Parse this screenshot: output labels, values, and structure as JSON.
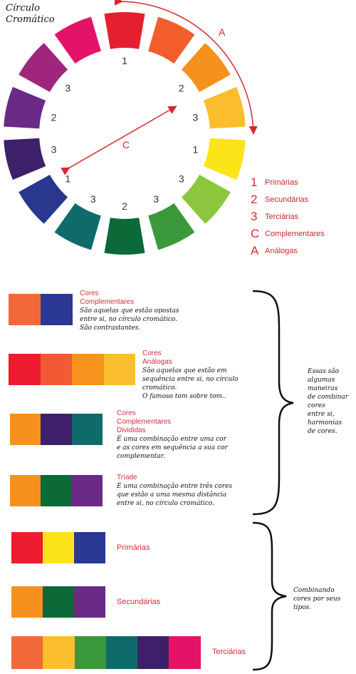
{
  "title": {
    "line1": "Círculo",
    "line2": "Cromático"
  },
  "wheel": {
    "segments": [
      {
        "color": "#e51f2e",
        "label": "1"
      },
      {
        "color": "#f25d2b",
        "label": ""
      },
      {
        "color": "#f6911e",
        "label": "2"
      },
      {
        "color": "#fbbd2c",
        "label": "3"
      },
      {
        "color": "#fbe417",
        "label": "1"
      },
      {
        "color": "#8cc63e",
        "label": "3"
      },
      {
        "color": "#3a9a3b",
        "label": "3"
      },
      {
        "color": "#0b6a37",
        "label": "2"
      },
      {
        "color": "#0f6b6b",
        "label": "3"
      },
      {
        "color": "#29378f",
        "label": "1"
      },
      {
        "color": "#3e1f69",
        "label": "3"
      },
      {
        "color": "#6b2a86",
        "label": "2"
      },
      {
        "color": "#a0267d",
        "label": "3"
      },
      {
        "color": "#e51367",
        "label": ""
      }
    ],
    "arrow_a_label": "A",
    "arrow_c_label": "C"
  },
  "legend": [
    {
      "num": "1",
      "label": "Primárias"
    },
    {
      "num": "2",
      "label": "Secundárias"
    },
    {
      "num": "3",
      "label": "Terciárias"
    },
    {
      "num": "C",
      "label": "Complementares"
    },
    {
      "num": "A",
      "label": "Análogas"
    }
  ],
  "harmonies": [
    {
      "name1": "Cores",
      "name2": "Complementares",
      "name3": "",
      "desc": [
        "São aquelas que estão opostas",
        "entre si, no círculo cromático.",
        "São contrastantes."
      ],
      "colors": [
        "#f26939",
        "#2a3893"
      ]
    },
    {
      "name1": "Cores",
      "name2": "Análogas",
      "name3": "",
      "desc": [
        "São aquelas que estão em",
        "sequência entre si, no círculo",
        "cromático.",
        "O famoso tom sobre tom.."
      ],
      "colors": [
        "#ed1c2e",
        "#f15a35",
        "#f7931e",
        "#fbbe2c"
      ]
    },
    {
      "name1": "Cores",
      "name2": "Complementares",
      "name3": "Divididas",
      "desc": [
        "É uma combinação entre uma cor",
        "e as cores em sequência a sua cor",
        "complementar."
      ],
      "colors": [
        "#f6911e",
        "#3f1f69",
        "#0f6b6b"
      ]
    },
    {
      "name1": "Tríade",
      "name2": "",
      "name3": "",
      "desc": [
        "É uma combinação entre três cores",
        "que estão a uma mesma distância",
        "entre si, no círculo cromático."
      ],
      "colors": [
        "#f6911e",
        "#0b6a37",
        "#6b2a86"
      ]
    }
  ],
  "harmonies_note": [
    "Essas são",
    "algumas",
    "maneiras",
    "de combinar",
    "cores",
    "entre si,",
    "harmonias",
    "de cores."
  ],
  "groups": [
    {
      "label": "Primárias",
      "colors": [
        "#ed1c2e",
        "#fbe417",
        "#2a3893"
      ]
    },
    {
      "label": "Secundárias",
      "colors": [
        "#f6911e",
        "#0b6a37",
        "#6b2a86"
      ]
    },
    {
      "label": "Terciárias",
      "colors": [
        "#f26939",
        "#fbbe2c",
        "#3a9a3b",
        "#0f6b6b",
        "#3f1f69",
        "#e51367"
      ]
    }
  ],
  "groups_note": [
    "Combinando",
    "cores por seus",
    "tipos."
  ]
}
